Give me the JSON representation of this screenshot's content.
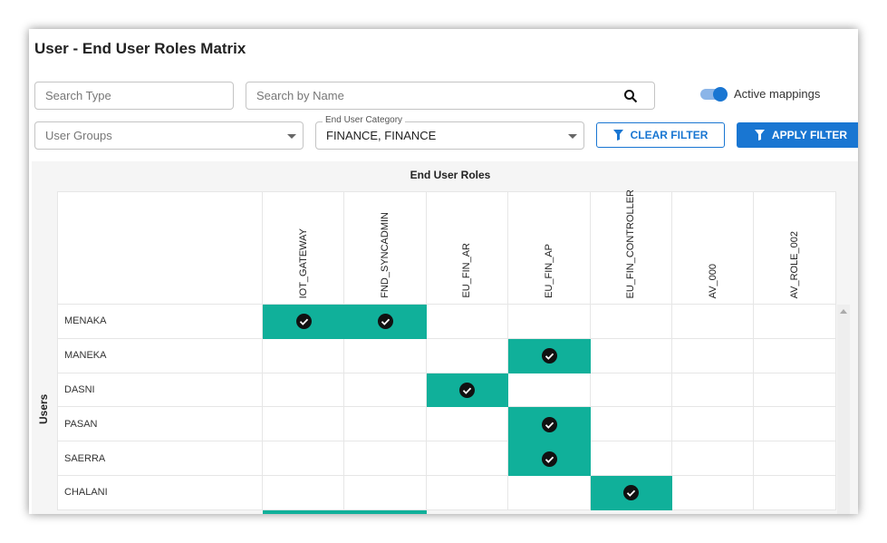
{
  "header": {
    "title": "User - End User Roles Matrix"
  },
  "filters": {
    "search_type": "Search Type",
    "search_name": "Search by Name",
    "toggle_label": "Active mappings",
    "toggle_on": true,
    "user_groups": "User Groups",
    "category_label": "End User Category",
    "category_value": "FINANCE, FINANCE",
    "clear_filter": "CLEAR FILTER",
    "apply_filter": "APPLY FILTER"
  },
  "matrix": {
    "column_title": "End User Roles",
    "row_title": "Users",
    "roles": [
      "IOT_GATEWAY",
      "FND_SYNCADMIN",
      "EU_FIN_AR",
      "EU_FIN_AP",
      "EU_FIN_CONTROLLER",
      "AV_000",
      "AV_ROLE_002"
    ],
    "rows": [
      {
        "user": "MENAKA",
        "mapped": [
          true,
          true,
          false,
          false,
          false,
          false,
          false
        ]
      },
      {
        "user": "MANEKA",
        "mapped": [
          false,
          false,
          false,
          true,
          false,
          false,
          false
        ]
      },
      {
        "user": "DASNI",
        "mapped": [
          false,
          false,
          true,
          false,
          false,
          false,
          false
        ]
      },
      {
        "user": "PASAN",
        "mapped": [
          false,
          false,
          false,
          true,
          false,
          false,
          false
        ]
      },
      {
        "user": "SAERRA",
        "mapped": [
          false,
          false,
          false,
          true,
          false,
          false,
          false
        ]
      },
      {
        "user": "CHALANI",
        "mapped": [
          false,
          false,
          false,
          false,
          true,
          false,
          false
        ]
      }
    ]
  }
}
